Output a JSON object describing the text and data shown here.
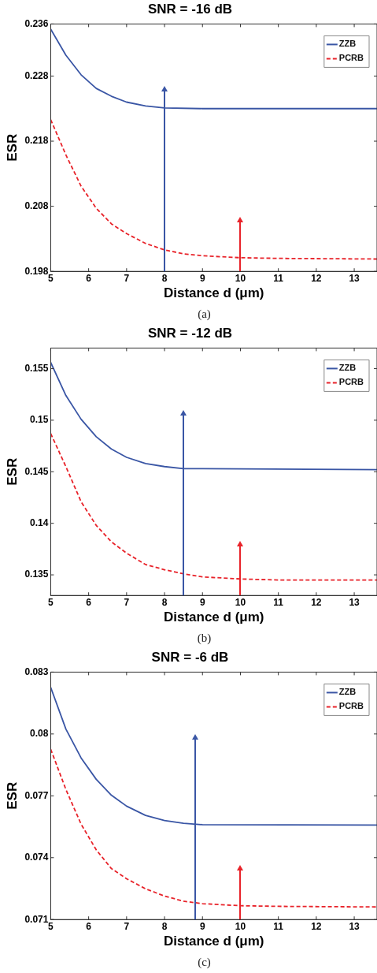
{
  "chart_data": [
    {
      "type": "line",
      "title": "SNR = -16 dB",
      "xlabel": "Distance d (μm)",
      "ylabel": "ESR",
      "xlim": [
        5,
        13.6
      ],
      "xticks": [
        5,
        6,
        7,
        8,
        9,
        10,
        11,
        12,
        13
      ],
      "ylim": [
        0.198,
        0.236
      ],
      "yticks": [
        0.198,
        0.208,
        0.218,
        0.228,
        0.236
      ],
      "grid": false,
      "legend": "top right",
      "marker": "none",
      "annotations": [
        "(a)"
      ],
      "ref_lines": [
        {
          "axis": "x",
          "value": 8,
          "color": "#3a56a5"
        },
        {
          "axis": "x",
          "value": 10,
          "color": "#e8232a"
        }
      ],
      "series": [
        {
          "name": "ZZB",
          "color": "#3a56a5",
          "line_style": "solid",
          "x": [
            5,
            5.4,
            5.8,
            6.2,
            6.6,
            7,
            7.5,
            8,
            9,
            13.6
          ],
          "values": [
            0.2352,
            0.2312,
            0.2282,
            0.2261,
            0.2249,
            0.224,
            0.2234,
            0.2231,
            0.223,
            0.223
          ]
        },
        {
          "name": "PCRB",
          "color": "#e8232a",
          "line_style": "dashed",
          "x": [
            5,
            5.4,
            5.8,
            6.2,
            6.6,
            7,
            7.5,
            8,
            8.5,
            9,
            10,
            11,
            13.6
          ],
          "values": [
            0.2213,
            0.2159,
            0.2111,
            0.2077,
            0.2053,
            0.2038,
            0.2023,
            0.2013,
            0.2007,
            0.2004,
            0.2001,
            0.2,
            0.1999
          ]
        }
      ]
    },
    {
      "type": "line",
      "title": "SNR = -12 dB",
      "xlabel": "Distance d (μm)",
      "ylabel": "ESR",
      "xlim": [
        5,
        13.6
      ],
      "xticks": [
        5,
        6,
        7,
        8,
        9,
        10,
        11,
        12,
        13
      ],
      "ylim": [
        0.133,
        0.157
      ],
      "yticks": [
        0.135,
        0.14,
        0.145,
        0.15,
        0.155
      ],
      "grid": false,
      "legend": "top right",
      "marker": "none",
      "annotations": [
        "(b)"
      ],
      "ref_lines": [
        {
          "axis": "x",
          "value": 8.5,
          "color": "#3a56a5"
        },
        {
          "axis": "x",
          "value": 10,
          "color": "#e8232a"
        }
      ],
      "series": [
        {
          "name": "ZZB",
          "color": "#3a56a5",
          "line_style": "solid",
          "x": [
            5,
            5.4,
            5.8,
            6.2,
            6.6,
            7,
            7.5,
            8,
            8.5,
            9,
            13.6
          ],
          "values": [
            0.1556,
            0.1524,
            0.1501,
            0.1484,
            0.1472,
            0.1464,
            0.1458,
            0.1455,
            0.1453,
            0.1453,
            0.1452
          ]
        },
        {
          "name": "PCRB",
          "color": "#e8232a",
          "line_style": "dashed",
          "x": [
            5,
            5.4,
            5.8,
            6.2,
            6.6,
            7,
            7.5,
            8,
            8.5,
            9,
            10,
            11,
            13.6
          ],
          "values": [
            0.1487,
            0.1455,
            0.1421,
            0.1398,
            0.1382,
            0.1371,
            0.136,
            0.1355,
            0.1351,
            0.1348,
            0.1346,
            0.1345,
            0.1345
          ]
        }
      ]
    },
    {
      "type": "line",
      "title": "SNR = -6 dB",
      "xlabel": "Distance d (μm)",
      "ylabel": "ESR",
      "xlim": [
        5,
        13.6
      ],
      "xticks": [
        5,
        6,
        7,
        8,
        9,
        10,
        11,
        12,
        13
      ],
      "ylim": [
        0.071,
        0.083
      ],
      "yticks": [
        0.071,
        0.074,
        0.077,
        0.08,
        0.083
      ],
      "grid": false,
      "legend": "top right",
      "marker": "none",
      "annotations": [
        "(c)"
      ],
      "ref_lines": [
        {
          "axis": "x",
          "value": 8.8,
          "color": "#3a56a5"
        },
        {
          "axis": "x",
          "value": 10,
          "color": "#e8232a"
        }
      ],
      "series": [
        {
          "name": "ZZB",
          "color": "#3a56a5",
          "line_style": "solid",
          "x": [
            5,
            5.4,
            5.8,
            6.2,
            6.6,
            7,
            7.5,
            8,
            8.5,
            9,
            13.6
          ],
          "values": [
            0.08226,
            0.08024,
            0.07884,
            0.0778,
            0.07703,
            0.0765,
            0.07605,
            0.0758,
            0.07567,
            0.0756,
            0.07558
          ]
        },
        {
          "name": "PCRB",
          "color": "#e8232a",
          "line_style": "dashed",
          "x": [
            5,
            5.4,
            5.8,
            6.2,
            6.6,
            7,
            7.5,
            8,
            8.5,
            9,
            10,
            11,
            13.6
          ],
          "values": [
            0.07926,
            0.07731,
            0.07563,
            0.07438,
            0.07347,
            0.07298,
            0.07249,
            0.07214,
            0.07189,
            0.07177,
            0.07167,
            0.07164,
            0.07161
          ]
        }
      ]
    }
  ]
}
